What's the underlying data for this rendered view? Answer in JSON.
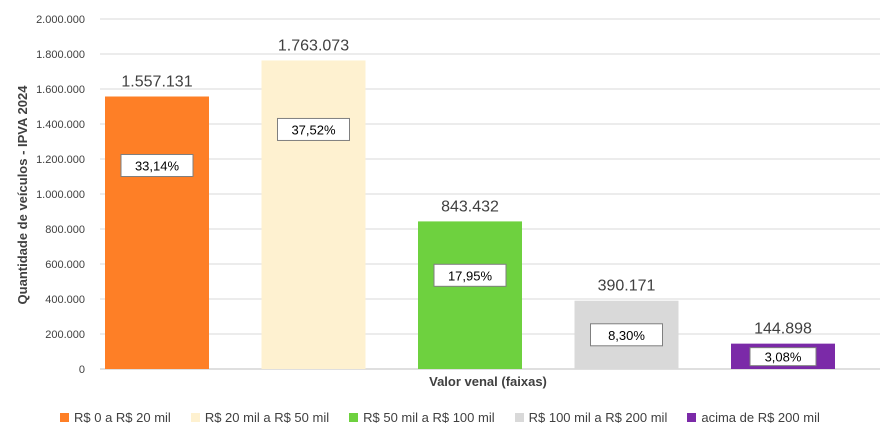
{
  "chart_data": {
    "type": "bar",
    "xlabel": "Valor venal (faixas)",
    "ylabel": "Quantidade de veículos - IPVA 2024",
    "ylim": [
      0,
      2000000
    ],
    "yticks": [
      "0",
      "200.000",
      "400.000",
      "600.000",
      "800.000",
      "1.000.000",
      "1.200.000",
      "1.400.000",
      "1.600.000",
      "1.800.000",
      "2.000.000"
    ],
    "categories": [
      "R$ 0 a R$ 20 mil",
      "R$ 20 mil a R$ 50 mil",
      "R$ 50 mil a R$ 100 mil",
      "R$ 100 mil a R$ 200 mil",
      "acima de R$ 200 mil"
    ],
    "values": [
      1557131,
      1763073,
      843432,
      390171,
      144898
    ],
    "value_labels": [
      "1.557.131",
      "1.763.073",
      "843.432",
      "390.171",
      "144.898"
    ],
    "percent_labels": [
      "33,14%",
      "37,52%",
      "17,95%",
      "8,30%",
      "3,08%"
    ],
    "colors": [
      "#fe7f26",
      "#fef1d0",
      "#6ed13f",
      "#d9d9d9",
      "#7b2aa8"
    ],
    "grid": true,
    "legend_position": "bottom"
  }
}
